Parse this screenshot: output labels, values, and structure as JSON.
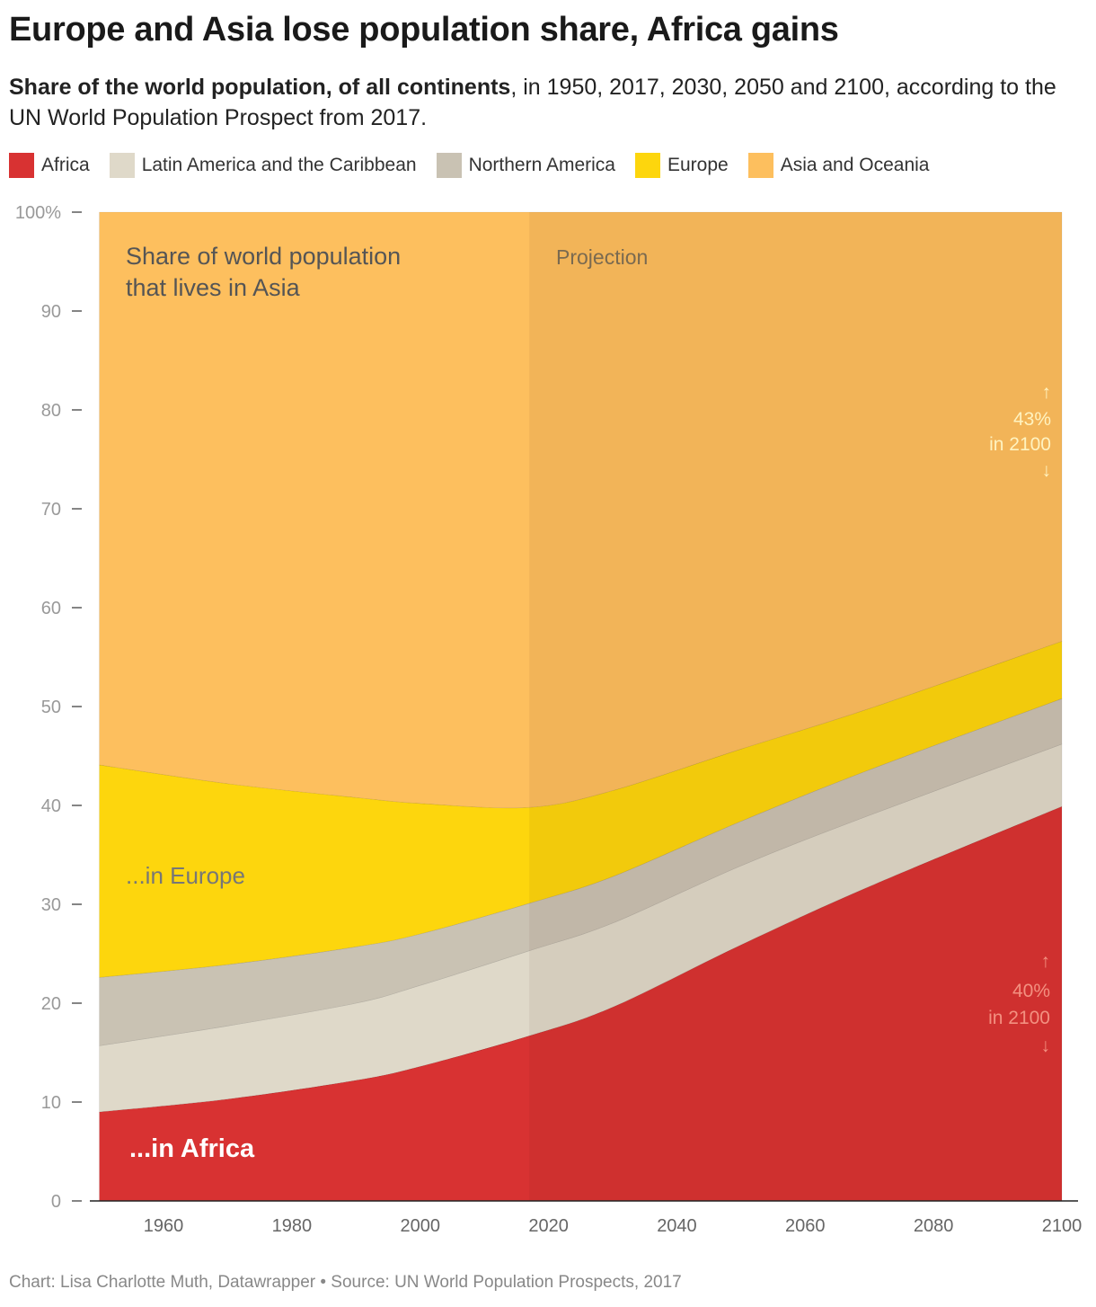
{
  "title": "Europe and Asia lose population share, Africa gains",
  "subtitle_bold": "Share of the world population, of all continents",
  "subtitle_rest": ", in 1950, 2017, 2030, 2050 and 2100, according to the UN World Population Prospect from 2017.",
  "footer": "Chart: Lisa Charlotte Muth, Datawrapper • Source: UN World Population Prospects, 2017",
  "colors": {
    "Africa": "#d83232",
    "Latin America and the Caribbean": "#dfd9c9",
    "Northern America": "#c9c2b3",
    "Europe": "#fdd60d",
    "Asia and Oceania": "#fdbf5e"
  },
  "chart_data": {
    "type": "area",
    "stacked": true,
    "title": "Europe and Asia lose population share, Africa gains",
    "ylabel": "",
    "xlabel": "",
    "ylim": [
      0,
      100
    ],
    "xlim": [
      1950,
      2100
    ],
    "y_ticks": [
      "100%",
      "90",
      "80",
      "70",
      "60",
      "50",
      "40",
      "30",
      "20",
      "10",
      "0"
    ],
    "x_ticks": [
      "1960",
      "1980",
      "2000",
      "2020",
      "2040",
      "2060",
      "2080",
      "2100"
    ],
    "x": [
      1950,
      1970,
      1990,
      2000,
      2017,
      2030,
      2050,
      2070,
      2100
    ],
    "series": [
      {
        "name": "Africa",
        "values": [
          9.0,
          10.3,
          12.2,
          13.6,
          16.7,
          19.6,
          25.9,
          31.8,
          39.9
        ]
      },
      {
        "name": "Latin America and the Caribbean",
        "values": [
          6.7,
          7.4,
          7.8,
          8.2,
          8.6,
          8.5,
          8.0,
          7.2,
          6.3
        ]
      },
      {
        "name": "Northern America",
        "values": [
          6.9,
          6.2,
          5.7,
          5.2,
          4.8,
          4.7,
          4.5,
          4.6,
          4.6
        ]
      },
      {
        "name": "Europe",
        "values": [
          21.5,
          18.3,
          15.1,
          13.2,
          9.7,
          8.7,
          7.3,
          6.2,
          5.8
        ]
      },
      {
        "name": "Asia and Oceania",
        "values": [
          55.9,
          57.8,
          59.2,
          59.8,
          60.2,
          58.5,
          54.3,
          50.2,
          43.4
        ]
      }
    ],
    "projection_start": 2017,
    "legend_position": "top-left",
    "annotations": {
      "asia_line1": "Share of world population",
      "asia_line2": "that lives in Asia",
      "projection": "Projection",
      "europe": "...in Europe",
      "africa": "...in Africa",
      "asia_2100": {
        "up": "↑",
        "value": "43%",
        "label": "in 2100",
        "down": "↓"
      },
      "africa_2100": {
        "up": "↑",
        "value": "40%",
        "label": "in 2100",
        "down": "↓"
      }
    }
  }
}
